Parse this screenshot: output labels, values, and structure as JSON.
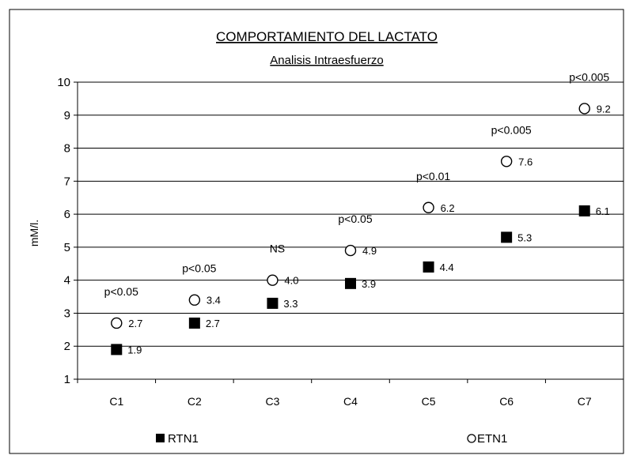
{
  "chart_data": {
    "type": "scatter",
    "title": "COMPORTAMIENTO DEL LACTATO",
    "subtitle": "Analisis Intraesfuerzo",
    "ylabel": "mM/l.",
    "xlabel": "",
    "ylim": [
      1,
      10
    ],
    "yticks": [
      "1",
      "2",
      "3",
      "4",
      "5",
      "6",
      "7",
      "8",
      "9",
      "10"
    ],
    "categories": [
      "C1",
      "C2",
      "C3",
      "C4",
      "C5",
      "C6",
      "C7"
    ],
    "grid": "horizontal",
    "legend_position": "bottom",
    "series": [
      {
        "name": "RTN1",
        "marker": "square-filled",
        "color": "#000000",
        "values": [
          1.9,
          2.7,
          3.3,
          3.9,
          4.4,
          5.3,
          6.1
        ],
        "labels": [
          "1.9",
          "2.7",
          "3.3",
          "3.9",
          "4.4",
          "5.3",
          "6.1"
        ]
      },
      {
        "name": "ETN1",
        "marker": "circle-open",
        "color": "#000000",
        "values": [
          2.7,
          3.4,
          4.0,
          4.9,
          6.2,
          7.6,
          9.2
        ],
        "labels": [
          "2.7",
          "3.4",
          "4.0",
          "4.9",
          "6.2",
          "7.6",
          "9.2"
        ]
      }
    ],
    "annotations": [
      "p<0.05",
      "p<0.05",
      "NS",
      "p<0.05",
      "p<0.01",
      "p<0.005",
      "p<0.005"
    ]
  }
}
